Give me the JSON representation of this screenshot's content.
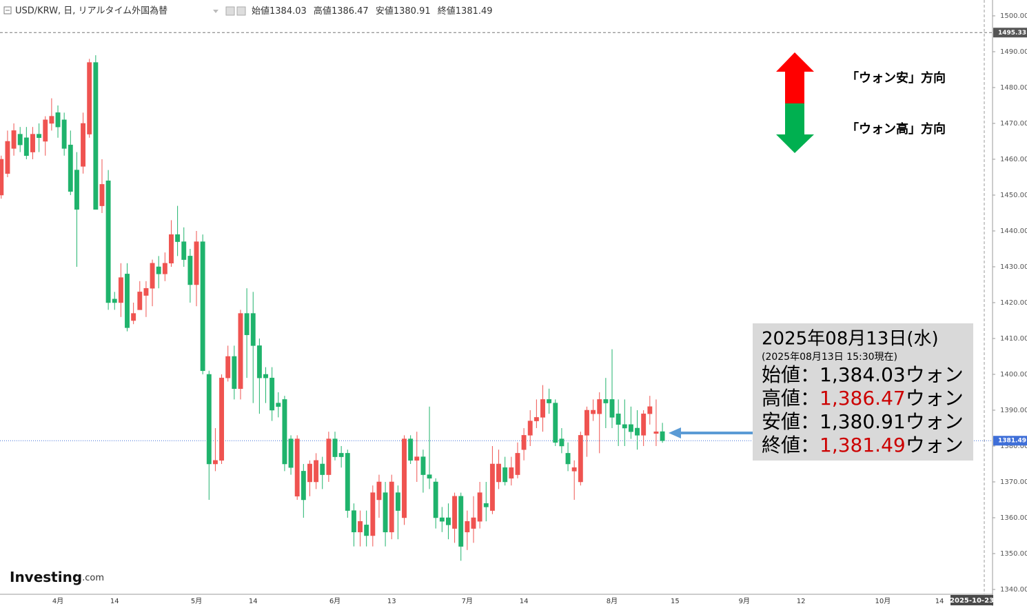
{
  "chart_data": {
    "type": "candlestick",
    "header": {
      "symbol": "USD/KRW, 日, リアルタイム外国為替",
      "ohlc": [
        {
          "label": "始値",
          "value": 1384.03
        },
        {
          "label": "高値",
          "value": 1386.47
        },
        {
          "label": "安値",
          "value": 1380.91
        },
        {
          "label": "終値",
          "value": 1381.49
        }
      ]
    },
    "up_color": "#ef5350",
    "down_color": "#1fb36c",
    "categories": [
      null,
      null,
      null,
      null,
      null,
      null,
      null,
      null,
      null,
      "4月",
      null,
      null,
      null,
      null,
      null,
      null,
      null,
      null,
      "14",
      null,
      null,
      null,
      null,
      null,
      null,
      null,
      null,
      null,
      null,
      null,
      null,
      "5月",
      null,
      null,
      null,
      null,
      null,
      null,
      null,
      null,
      "14",
      null,
      null,
      null,
      null,
      null,
      null,
      null,
      null,
      null,
      null,
      null,
      null,
      "6月",
      null,
      null,
      null,
      null,
      null,
      null,
      null,
      null,
      "13",
      null,
      null,
      null,
      null,
      null,
      null,
      null,
      null,
      null,
      null,
      null,
      "7月",
      null,
      null,
      null,
      null,
      null,
      null,
      null,
      null,
      "14",
      null,
      null,
      null,
      null,
      null,
      null,
      null,
      null,
      null,
      null,
      null,
      null,
      null,
      "8月",
      null,
      null,
      null,
      null,
      null,
      null,
      null,
      null,
      null,
      "15",
      null,
      null,
      null,
      null,
      null,
      null,
      null,
      null,
      null,
      null,
      "9月",
      null,
      null,
      null,
      null,
      null,
      null,
      null,
      null,
      "12",
      null,
      null,
      null,
      null,
      null,
      null,
      null,
      null,
      null,
      null,
      null,
      null,
      "10月",
      null,
      null,
      null,
      null,
      null,
      null,
      null,
      null,
      "14",
      null,
      null,
      null,
      null,
      null,
      null,
      "2025-10-23"
    ],
    "open": [
      1450,
      1456,
      1463,
      1467,
      1466,
      1462,
      1467,
      1465,
      1470,
      1473,
      1471,
      1464,
      1457,
      1458,
      1467,
      1487,
      1447,
      1454,
      1421,
      1420,
      1428,
      1415,
      1418,
      1422,
      1424,
      1430,
      1428,
      1431,
      1439,
      1437,
      1433,
      1425,
      1437,
      1400,
      1375,
      1376,
      1399,
      1405,
      1396,
      1417,
      1417,
      1408,
      1400,
      1399,
      1392,
      1393,
      1382,
      1366,
      1373,
      1370,
      1370,
      1375,
      1372,
      1382,
      1378,
      1378,
      1362,
      1356,
      1358,
      1355,
      1365,
      1367,
      1356,
      1367,
      1360,
      1382,
      1376,
      1377,
      1372,
      1370,
      1360,
      1360,
      1357,
      1366,
      1356,
      1357,
      1359,
      1364,
      1362,
      1370,
      1374,
      1371,
      1372,
      1379,
      1383,
      1387,
      1388,
      1393,
      1392,
      1382,
      1378,
      1373,
      1370,
      1383,
      1389,
      1389,
      1393,
      1393,
      1389,
      1386,
      1386,
      1385,
      1383,
      1389,
      1383.5,
      1384.03,
      null,
      null,
      null,
      null,
      null,
      null,
      null,
      null,
      null,
      null,
      null,
      null,
      null,
      null,
      null,
      null,
      null,
      null,
      null,
      null,
      null,
      null,
      null,
      null,
      null,
      null,
      null,
      null,
      null,
      null,
      null,
      null,
      null,
      null,
      null,
      null,
      null,
      null,
      null,
      null,
      null,
      null,
      null,
      null,
      null,
      null,
      null,
      null,
      null,
      null,
      null
    ],
    "high": [
      1461,
      1468,
      1470,
      1469,
      1469,
      1469,
      1470,
      1472,
      1477,
      1475,
      1473,
      1468,
      1462,
      1473,
      1488,
      1489,
      1460,
      1457,
      1423,
      1431,
      1431,
      1420,
      1426,
      1426,
      1432,
      1433,
      1434,
      1443,
      1447,
      1441,
      1435,
      1440,
      1439,
      1401,
      1385,
      1400,
      1408,
      1408,
      1418,
      1424,
      1423,
      1410,
      1402,
      1402,
      1395,
      1394,
      1383,
      1383,
      1375,
      1376,
      1378,
      1377,
      1384,
      1384,
      1380,
      1379,
      1364,
      1362,
      1362,
      1369,
      1372,
      1370,
      1372,
      1369,
      1383,
      1383,
      1384,
      1379,
      1391,
      1371,
      1363,
      1364,
      1367,
      1367,
      1362,
      1366,
      1370,
      1370,
      1380,
      1379,
      1377,
      1377,
      1381,
      1385,
      1390,
      1393,
      1397,
      1396,
      1393,
      1385,
      1381,
      1376,
      1384,
      1391,
      1393,
      1395,
      1399,
      1407,
      1393,
      1393,
      1391,
      1390,
      1390,
      1394,
      1393,
      1386.47,
      null,
      null,
      null,
      null,
      null,
      null,
      null,
      null,
      null,
      null,
      null,
      null,
      null,
      null,
      null,
      null,
      null,
      null,
      null,
      null,
      null,
      null,
      null,
      null,
      null,
      null,
      null,
      null,
      null,
      null,
      null,
      null,
      null,
      null,
      null,
      null,
      null,
      null,
      null,
      null,
      null,
      null,
      null,
      null,
      null,
      null,
      null,
      null,
      null,
      null,
      null
    ],
    "low": [
      1449,
      1455,
      1461,
      1462,
      1460,
      1460,
      1462,
      1461,
      1468,
      1466,
      1461,
      1450,
      1430,
      1456,
      1466,
      1446,
      1445,
      1418,
      1418,
      1416,
      1412,
      1414,
      1418,
      1416,
      1419,
      1424,
      1426,
      1430,
      1433,
      1430,
      1420,
      1419,
      1400,
      1365,
      1373,
      1375,
      1398,
      1393,
      1393,
      1399,
      1392,
      1389,
      1392,
      1387,
      1388,
      1373,
      1372,
      1365,
      1360,
      1366,
      1368,
      1368,
      1370,
      1376,
      1374,
      1360,
      1352,
      1352,
      1352,
      1352,
      1360,
      1352,
      1354,
      1354,
      1358,
      1375,
      1370,
      1367,
      1368,
      1357,
      1356,
      1354,
      1353,
      1348,
      1351,
      1353,
      1357,
      1359,
      1361,
      1368,
      1369,
      1369,
      1371,
      1376,
      1380,
      1385,
      1384,
      1389,
      1380,
      1378,
      1373,
      1365,
      1369,
      1377,
      1387,
      1378,
      1385,
      1385,
      1380,
      1380,
      1382,
      1379,
      1380,
      1386,
      1380,
      1380.91,
      null,
      null,
      null,
      null,
      null,
      null,
      null,
      null,
      null,
      null,
      null,
      null,
      null,
      null,
      null,
      null,
      null,
      null,
      null,
      null,
      null,
      null,
      null,
      null,
      null,
      null,
      null,
      null,
      null,
      null,
      null,
      null,
      null,
      null,
      null,
      null,
      null,
      null,
      null,
      null,
      null,
      null,
      null,
      null,
      null,
      null,
      null,
      null,
      null,
      null,
      null
    ],
    "close": [
      1460,
      1465,
      1468,
      1464,
      1461,
      1467,
      1466,
      1471,
      1472,
      1469,
      1463,
      1451,
      1446,
      1470,
      1487,
      1446,
      1453,
      1420,
      1420,
      1427,
      1413,
      1417,
      1423,
      1424,
      1431,
      1428,
      1431,
      1439,
      1437,
      1432,
      1425,
      1437,
      1401,
      1375,
      1376,
      1399,
      1405,
      1396,
      1417,
      1411,
      1408,
      1399,
      1399,
      1390,
      1391,
      1375,
      1374,
      1382,
      1365,
      1375,
      1376,
      1372,
      1382,
      1377,
      1377,
      1362,
      1356,
      1359,
      1355,
      1367,
      1370,
      1356,
      1370,
      1362,
      1382,
      1376,
      1377,
      1372,
      1371,
      1360,
      1359,
      1358,
      1366,
      1352,
      1359,
      1360,
      1367,
      1363,
      1375,
      1375,
      1370,
      1374,
      1378,
      1383,
      1387,
      1388,
      1393,
      1392,
      1381,
      1380,
      1375,
      1374,
      1383,
      1390,
      1390,
      1393,
      1392,
      1388,
      1386,
      1385,
      1384,
      1383,
      1389,
      1391,
      1384,
      1381.49,
      null,
      null,
      null,
      null,
      null,
      null,
      null,
      null,
      null,
      null,
      null,
      null,
      null,
      null,
      null,
      null,
      null,
      null,
      null,
      null,
      null,
      null,
      null,
      null,
      null,
      null,
      null,
      null,
      null,
      null,
      null,
      null,
      null,
      null,
      null,
      null,
      null,
      null,
      null,
      null,
      null,
      null,
      null,
      null,
      null,
      null,
      null,
      null,
      null,
      null,
      null
    ],
    "ylim": [
      1338.65,
      1504.42
    ],
    "yticks": [
      {
        "value": 1500,
        "label": "1500.00"
      },
      {
        "value": 1490,
        "label": "1490.00"
      },
      {
        "value": 1480,
        "label": "1480.00"
      },
      {
        "value": 1470,
        "label": "1470.00"
      },
      {
        "value": 1460,
        "label": "1460.00"
      },
      {
        "value": 1450,
        "label": "1450.00"
      },
      {
        "value": 1440,
        "label": "1440.00"
      },
      {
        "value": 1430,
        "label": "1430.00"
      },
      {
        "value": 1420,
        "label": "1420.00"
      },
      {
        "value": 1410,
        "label": "1410.00"
      },
      {
        "value": 1400,
        "label": "1400.00"
      },
      {
        "value": 1390,
        "label": "1390.00"
      },
      {
        "value": 1380,
        "label": "1380.00"
      },
      {
        "value": 1370,
        "label": "1370.00"
      },
      {
        "value": 1360,
        "label": "1360.00"
      },
      {
        "value": 1350,
        "label": "1350.00"
      },
      {
        "value": 1340,
        "label": "1340.00"
      }
    ],
    "grid": false,
    "price_lines": [
      {
        "value": 1495.33,
        "color": "#777777",
        "label_bg": "#555555",
        "dash": "4 3"
      },
      {
        "value": 1381.49,
        "color": "#3f6fd8",
        "label_bg": "#3f6fd8",
        "dash": "1 2"
      }
    ],
    "direction_legend": [
      "「ウォン安」方向",
      "「ウォン高」方向"
    ],
    "annotation": {
      "date": "2025年08月13日(水)",
      "note": "(2025年08月13日 15:30現在)",
      "rows": [
        {
          "label": "始値：",
          "value": "1,384.03",
          "unit": "ウォン",
          "color": "#000000"
        },
        {
          "label": "高値：",
          "value": "1,386.47",
          "unit": "ウォン",
          "color": "#cc0000"
        },
        {
          "label": "安値：",
          "value": "1,380.91",
          "unit": "ウォン",
          "color": "#000000"
        },
        {
          "label": "終値：",
          "value": "1,381.49",
          "unit": "ウォン",
          "color": "#cc0000"
        }
      ]
    },
    "logo": {
      "name": "Investing",
      "suffix": ".com"
    }
  }
}
